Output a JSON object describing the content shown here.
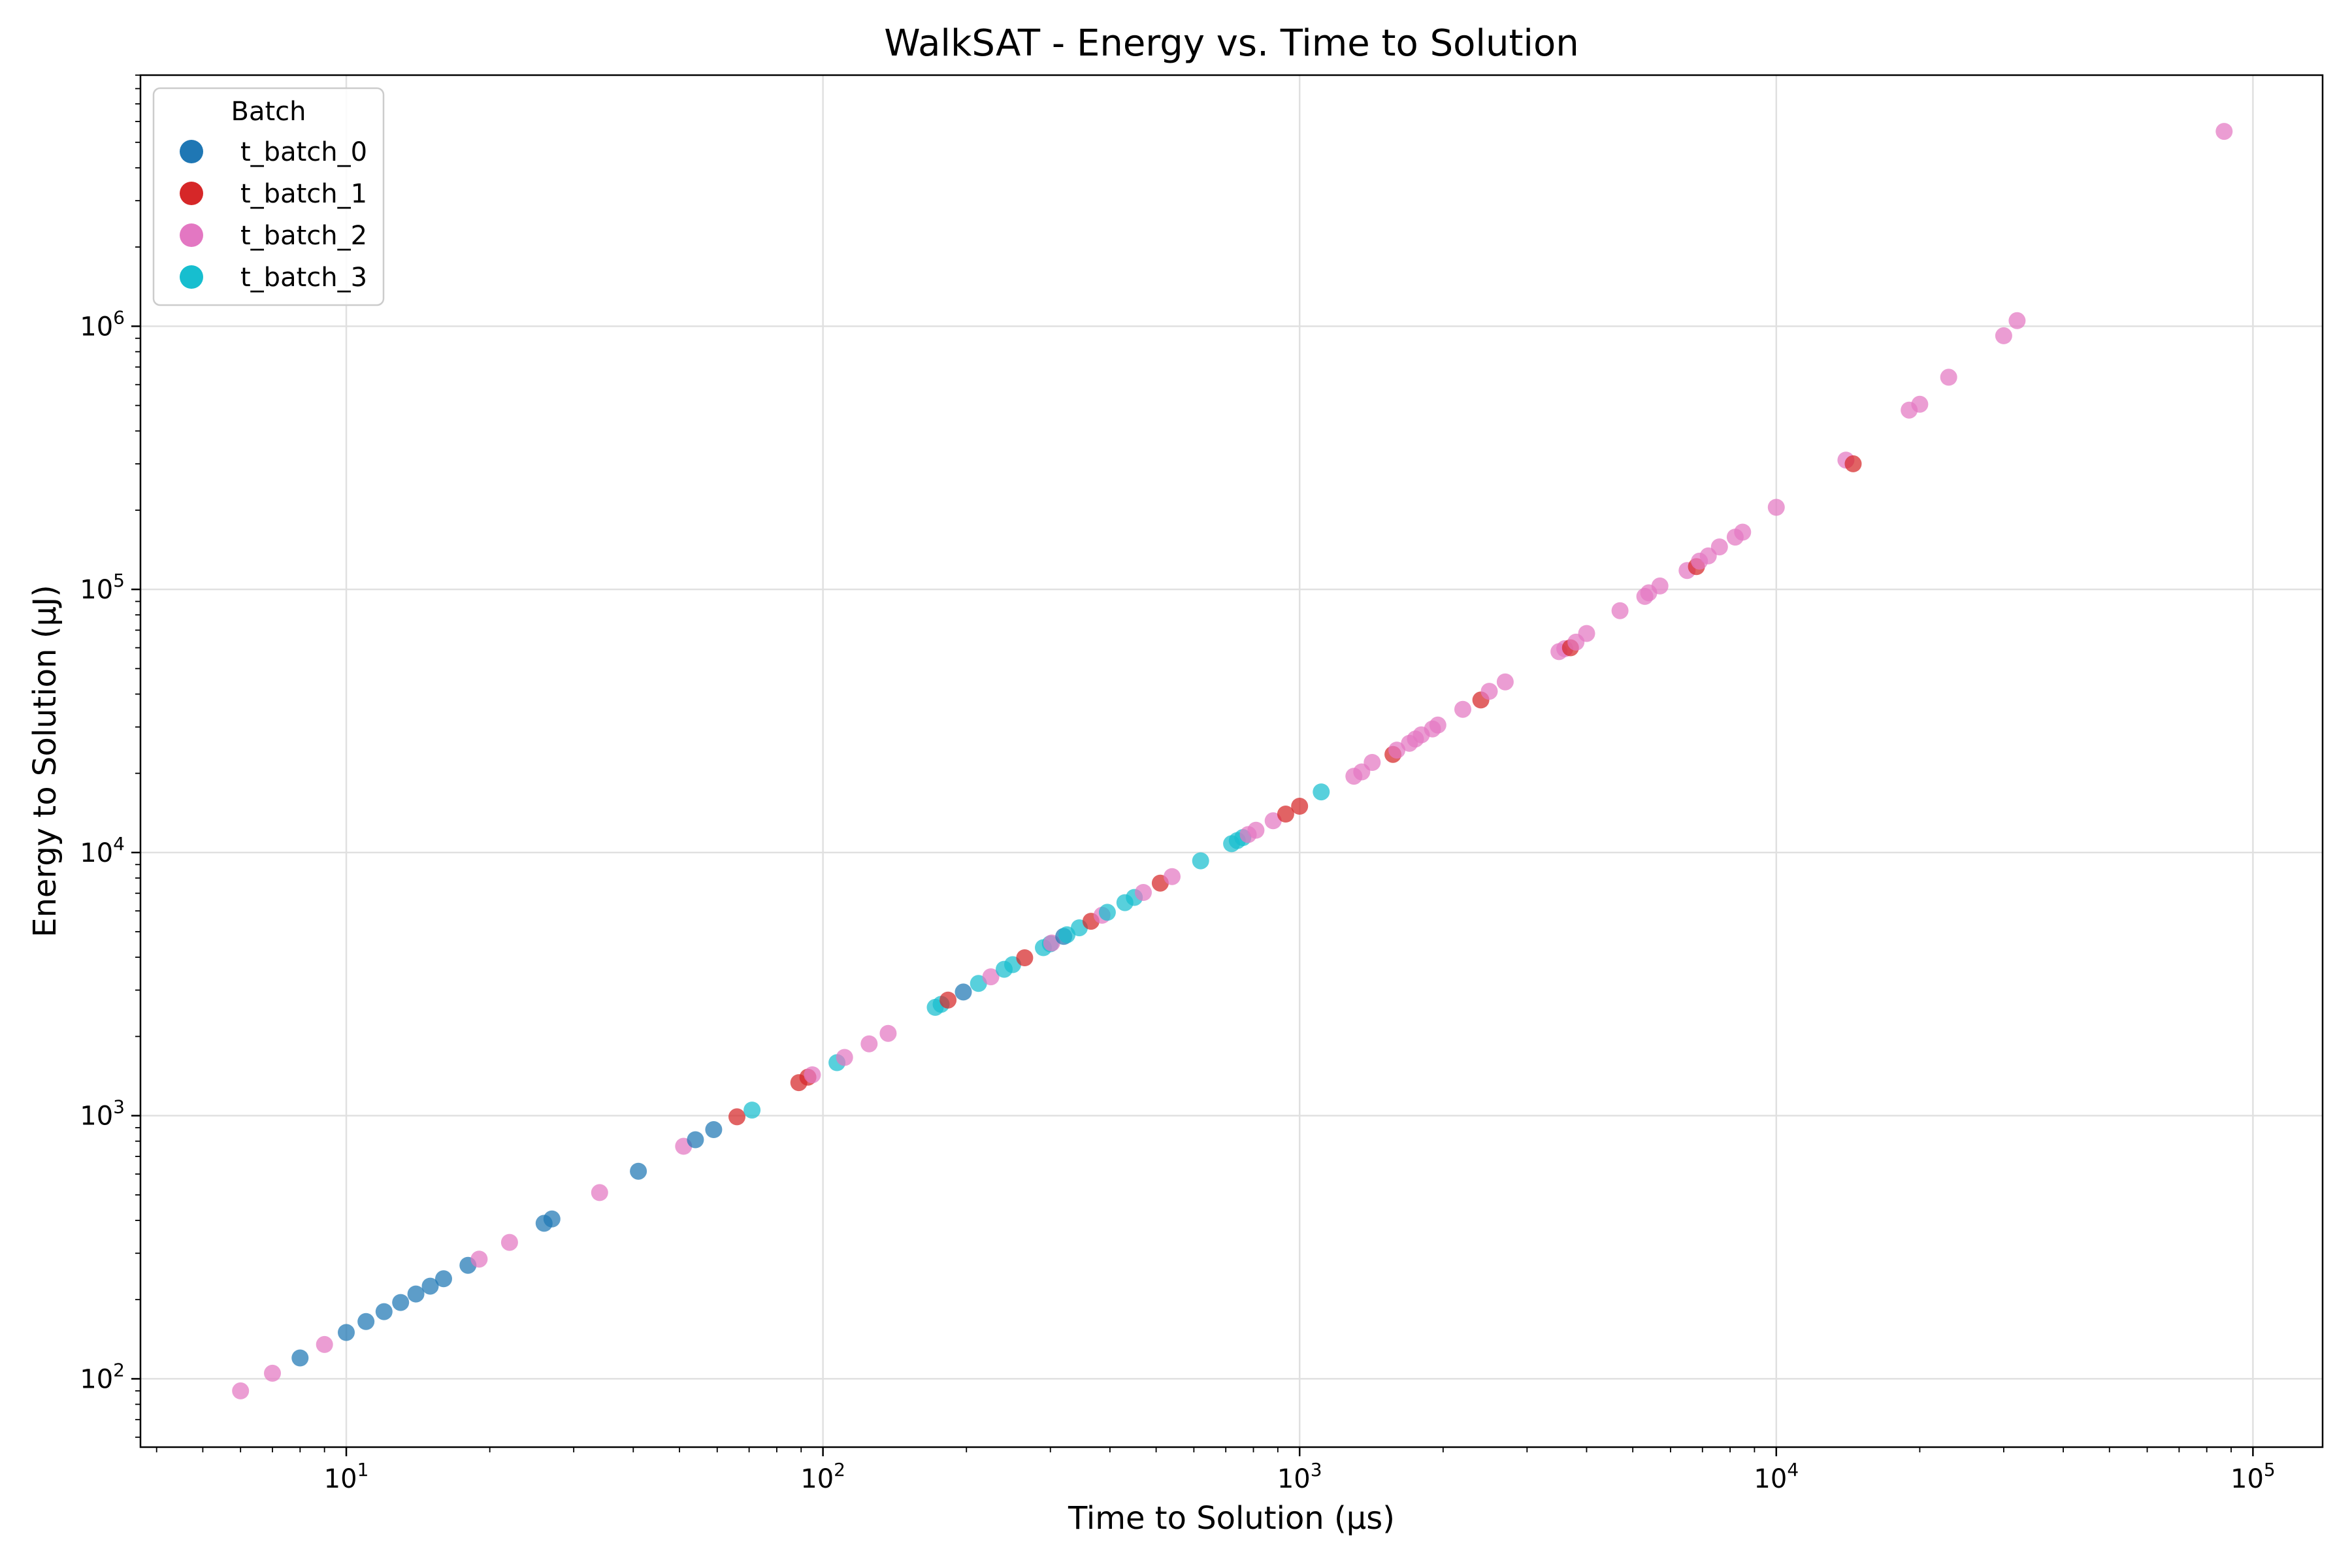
{
  "chart_data": {
    "type": "scatter",
    "title": "WalkSAT - Energy vs. Time to Solution",
    "xlabel": "Time to Solution (μs)",
    "ylabel": "Energy to Solution (μJ)",
    "xscale": "log",
    "yscale": "log",
    "xlim": [
      3.7,
      140000
    ],
    "ylim": [
      55,
      9000000
    ],
    "grid": true,
    "legend": {
      "title": "Batch",
      "position": "top-left"
    },
    "x_ticks": [
      {
        "value": 10,
        "base": "10",
        "exp": "1"
      },
      {
        "value": 100,
        "base": "10",
        "exp": "2"
      },
      {
        "value": 1000,
        "base": "10",
        "exp": "3"
      },
      {
        "value": 10000,
        "base": "10",
        "exp": "4"
      },
      {
        "value": 100000,
        "base": "10",
        "exp": "5"
      }
    ],
    "y_ticks": [
      {
        "value": 100,
        "base": "10",
        "exp": "2"
      },
      {
        "value": 1000,
        "base": "10",
        "exp": "3"
      },
      {
        "value": 10000,
        "base": "10",
        "exp": "4"
      },
      {
        "value": 100000,
        "base": "10",
        "exp": "5"
      },
      {
        "value": 1000000,
        "base": "10",
        "exp": "6"
      }
    ],
    "series": [
      {
        "name": "t_batch_0",
        "color": "#1f77b4",
        "points": [
          [
            8,
            120
          ],
          [
            10,
            150
          ],
          [
            11,
            165
          ],
          [
            12,
            180
          ],
          [
            13,
            195
          ],
          [
            14,
            210
          ],
          [
            15,
            225
          ],
          [
            16,
            240
          ],
          [
            18,
            270
          ],
          [
            26,
            390
          ],
          [
            27,
            405
          ],
          [
            41,
            615
          ],
          [
            54,
            810
          ],
          [
            59,
            885
          ],
          [
            197,
            2950
          ],
          [
            320,
            4800
          ]
        ]
      },
      {
        "name": "t_batch_1",
        "color": "#d62728",
        "points": [
          [
            66,
            990
          ],
          [
            89,
            1335
          ],
          [
            93,
            1400
          ],
          [
            183,
            2750
          ],
          [
            265,
            3980
          ],
          [
            365,
            5480
          ],
          [
            510,
            7650
          ],
          [
            935,
            14000
          ],
          [
            1000,
            15000
          ],
          [
            1570,
            23600
          ],
          [
            2400,
            38000
          ],
          [
            3700,
            60000
          ],
          [
            6800,
            122000
          ],
          [
            14500,
            300000
          ]
        ]
      },
      {
        "name": "t_batch_2",
        "color": "#e377c2",
        "points": [
          [
            6,
            90
          ],
          [
            7,
            105
          ],
          [
            9,
            135
          ],
          [
            19,
            285
          ],
          [
            22,
            330
          ],
          [
            34,
            510
          ],
          [
            51,
            765
          ],
          [
            95,
            1430
          ],
          [
            111,
            1665
          ],
          [
            125,
            1875
          ],
          [
            137,
            2055
          ],
          [
            225,
            3370
          ],
          [
            302,
            4530
          ],
          [
            385,
            5775
          ],
          [
            470,
            7050
          ],
          [
            540,
            8100
          ],
          [
            780,
            11700
          ],
          [
            810,
            12150
          ],
          [
            880,
            13200
          ],
          [
            1300,
            19500
          ],
          [
            1350,
            20250
          ],
          [
            1420,
            22000
          ],
          [
            1600,
            24500
          ],
          [
            1700,
            26000
          ],
          [
            1750,
            27000
          ],
          [
            1800,
            28000
          ],
          [
            1900,
            29500
          ],
          [
            1950,
            30500
          ],
          [
            2200,
            35000
          ],
          [
            2500,
            41000
          ],
          [
            2700,
            44500
          ],
          [
            3500,
            58000
          ],
          [
            3600,
            59500
          ],
          [
            3800,
            63000
          ],
          [
            4000,
            68000
          ],
          [
            4700,
            83000
          ],
          [
            5300,
            94000
          ],
          [
            5400,
            97000
          ],
          [
            5700,
            103000
          ],
          [
            6500,
            118000
          ],
          [
            6900,
            128000
          ],
          [
            7200,
            134000
          ],
          [
            7600,
            145000
          ],
          [
            8200,
            158000
          ],
          [
            8500,
            165000
          ],
          [
            10000,
            205000
          ],
          [
            14000,
            310000
          ],
          [
            19000,
            480000
          ],
          [
            20000,
            505000
          ],
          [
            23000,
            640000
          ],
          [
            30000,
            920000
          ],
          [
            32000,
            1050000
          ],
          [
            87000,
            5500000
          ]
        ]
      },
      {
        "name": "t_batch_3",
        "color": "#17becf",
        "points": [
          [
            71,
            1050
          ],
          [
            107,
            1590
          ],
          [
            172,
            2580
          ],
          [
            177,
            2650
          ],
          [
            212,
            3180
          ],
          [
            240,
            3600
          ],
          [
            250,
            3750
          ],
          [
            290,
            4350
          ],
          [
            300,
            4500
          ],
          [
            325,
            4870
          ],
          [
            345,
            5175
          ],
          [
            395,
            5925
          ],
          [
            430,
            6450
          ],
          [
            450,
            6750
          ],
          [
            620,
            9300
          ],
          [
            720,
            10800
          ],
          [
            740,
            11100
          ],
          [
            760,
            11400
          ],
          [
            1110,
            17000
          ]
        ]
      }
    ]
  }
}
